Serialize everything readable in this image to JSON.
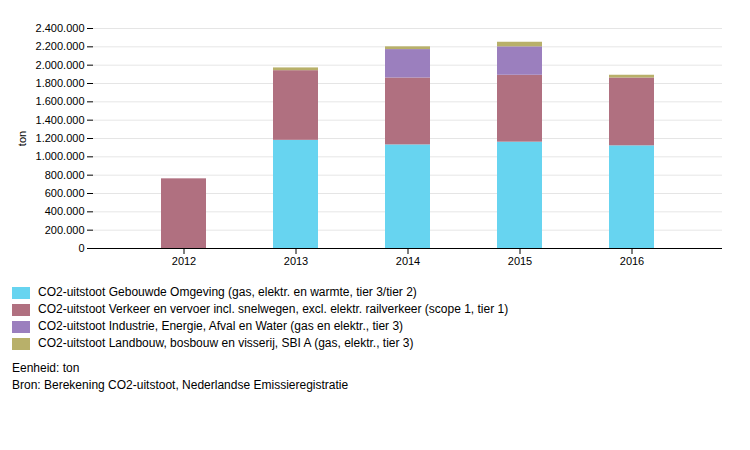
{
  "chart_data": {
    "type": "bar",
    "stacked": true,
    "categories": [
      "2012",
      "2013",
      "2014",
      "2015",
      "2016"
    ],
    "series": [
      {
        "name": "CO2-uitstoot Gebouwde Omgeving (gas, elektr. en warmte, tier 3/tier 2)",
        "color": "#67D4F0",
        "values": [
          0,
          1180000,
          1130000,
          1160000,
          1120000
        ]
      },
      {
        "name": "CO2-uitstoot Verkeer en vervoer incl. snelwegen, excl. elektr. railverkeer (scope 1, tier 1)",
        "color": "#B07080",
        "values": [
          760000,
          760000,
          730000,
          730000,
          740000
        ]
      },
      {
        "name": "CO2-uitstoot Industrie, Energie, Afval en Water (gas en elektr., tier 3)",
        "color": "#9B7FBE",
        "values": [
          0,
          0,
          310000,
          310000,
          0
        ]
      },
      {
        "name": "CO2-uitstoot Landbouw, bosbouw en visserij, SBI A (gas, elektr., tier 3)",
        "color": "#B8B06A",
        "values": [
          0,
          30000,
          30000,
          50000,
          30000
        ]
      }
    ],
    "ylabel": "ton",
    "ylim": [
      0,
      2400000
    ],
    "yticks": [
      0,
      {
        "value": 200000,
        "label": "200.000"
      },
      {
        "value": 400000,
        "label": "400.000"
      },
      {
        "value": 600000,
        "label": "600.000"
      },
      {
        "value": 800000,
        "label": "800.000"
      },
      {
        "value": 1000000,
        "label": "1.000.000"
      },
      {
        "value": 1200000,
        "label": "1.200.000"
      },
      {
        "value": 1400000,
        "label": "1.400.000"
      },
      {
        "value": 1600000,
        "label": "1.600.000"
      },
      {
        "value": 1800000,
        "label": "1.800.000"
      },
      {
        "value": 2000000,
        "label": "2.000.000"
      },
      {
        "value": 2200000,
        "label": "2.200.000"
      },
      {
        "value": 2400000,
        "label": "2.400.000"
      }
    ],
    "grid": true,
    "legend": "bottom",
    "annotations": [
      "Eenheid: ton",
      "Bron: Berekening CO2-uitstoot, Nederlandse Emissieregistratie"
    ]
  }
}
